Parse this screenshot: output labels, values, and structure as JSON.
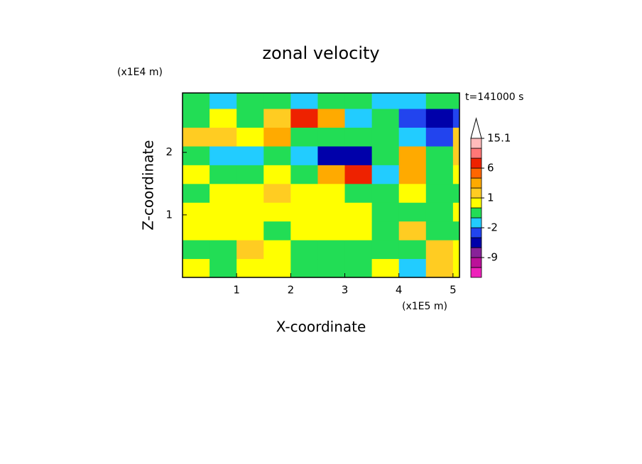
{
  "chart_data": {
    "type": "contour",
    "title": "zonal velocity",
    "x_label": "X-coordinate",
    "y_label": "Z-coordinate",
    "x_unit": "(x1E5 m)",
    "y_unit": "(x1E4 m)",
    "annotation": "t=141000 s",
    "xlim": [
      0,
      5.12
    ],
    "ylim": [
      0,
      2.95
    ],
    "xticks": [
      1,
      2,
      3,
      4,
      5
    ],
    "yticks": [
      1,
      2
    ],
    "xbins": [
      0,
      0.5,
      1,
      1.5,
      2,
      2.5,
      3,
      3.5,
      4,
      4.5,
      5,
      5.12
    ],
    "ybins": [
      0,
      0.3,
      0.6,
      0.9,
      1.2,
      1.5,
      1.8,
      2.1,
      2.4,
      2.7,
      2.95
    ],
    "z": [
      [
        0.5,
        -0.5,
        0.5,
        0.5,
        -0.5,
        -0.5,
        -0.5,
        0.5,
        -1.5,
        1.5,
        0.5
      ],
      [
        -0.5,
        -0.5,
        1.5,
        0.5,
        -0.5,
        -0.5,
        -0.5,
        -0.5,
        -0.5,
        1.5,
        0.5
      ],
      [
        0.5,
        0.5,
        0.5,
        -0.5,
        0.5,
        0.5,
        0.5,
        -0.5,
        1.5,
        -0.5,
        -0.5
      ],
      [
        0.5,
        0.5,
        0.5,
        0.5,
        0.5,
        0.5,
        0.5,
        -0.5,
        -0.5,
        -0.5,
        0.5
      ],
      [
        -0.5,
        0.5,
        0.5,
        1.5,
        0.5,
        0.5,
        -0.5,
        -0.5,
        0.5,
        -0.5,
        -0.5
      ],
      [
        0.5,
        -0.5,
        -0.5,
        0.5,
        -0.5,
        3,
        7,
        -1.5,
        3,
        -0.5,
        0.5
      ],
      [
        -0.5,
        -1.5,
        -1.5,
        -0.5,
        -1.5,
        -5,
        -5,
        -0.5,
        3,
        -0.5,
        1.5
      ],
      [
        1.5,
        1.5,
        0.5,
        3,
        -0.5,
        -0.5,
        -0.5,
        -0.5,
        -1.5,
        -3,
        1.5
      ],
      [
        -0.5,
        0.5,
        -0.5,
        1.5,
        7,
        3,
        -1.5,
        -0.5,
        -3,
        -5,
        -3
      ],
      [
        -0.5,
        -1.5,
        -0.5,
        -0.5,
        -1.5,
        -0.5,
        -0.5,
        -1.5,
        -1.5,
        -0.5,
        -0.5
      ]
    ],
    "levels": [
      -15,
      -12,
      -9,
      -6,
      -4,
      -2,
      -1,
      0,
      1,
      2,
      4,
      6,
      9,
      12,
      15.1
    ],
    "colors": [
      "#ee22bb",
      "#bb1199",
      "#882299",
      "#0000aa",
      "#2244ee",
      "#22ccff",
      "#22dd55",
      "#ffff00",
      "#ffcc22",
      "#ffaa00",
      "#ff6600",
      "#ee2200",
      "#ff7777",
      "#ffbbbb"
    ],
    "colorbar_ticks": [
      15.1,
      6,
      1,
      -2,
      -9
    ]
  }
}
